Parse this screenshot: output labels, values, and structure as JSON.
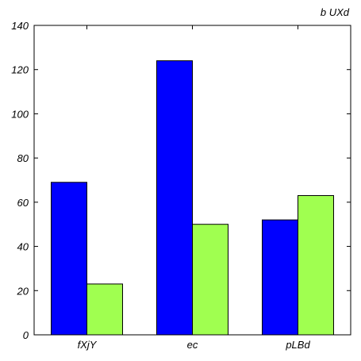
{
  "chart_data": {
    "type": "bar",
    "title": "b UXd",
    "xlabel": "",
    "ylabel": "",
    "categories": [
      "fXjY",
      "ec",
      "pLBd"
    ],
    "series": [
      {
        "values": [
          69,
          124,
          52
        ]
      },
      {
        "values": [
          23,
          50,
          63
        ]
      }
    ],
    "colors": [
      "#0000ff",
      "#a0ff50"
    ],
    "ylim": [
      0,
      140
    ],
    "yticks": [
      0,
      20,
      40,
      60,
      80,
      100,
      120,
      140
    ],
    "grid": false
  }
}
